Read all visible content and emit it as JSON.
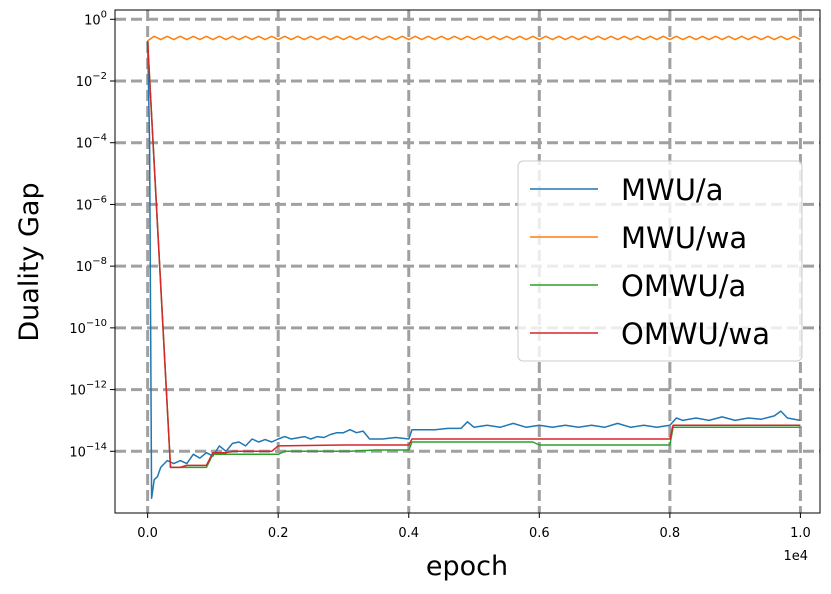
{
  "chart_data": {
    "type": "line",
    "title": "",
    "xlabel": "epoch",
    "ylabel": "Duality Gap",
    "x_offset_label": "1e4",
    "x_scale_factor": 10000,
    "xlim": [
      -0.05,
      1.03
    ],
    "x_ticks": [
      0.0,
      0.2,
      0.4,
      0.6,
      0.8,
      1.0
    ],
    "x_tick_labels": [
      "0.0",
      "0.2",
      "0.4",
      "0.6",
      "0.8",
      "1.0"
    ],
    "y_scale": "log",
    "ylim": [
      1e-16,
      2.0
    ],
    "y_ticks": [
      1.0,
      0.01,
      0.0001,
      1e-06,
      1e-08,
      1e-10,
      1e-12,
      1e-14
    ],
    "y_tick_labels": [
      {
        "base": "10",
        "exp": "0"
      },
      {
        "base": "10",
        "exp": "−2"
      },
      {
        "base": "10",
        "exp": "−4"
      },
      {
        "base": "10",
        "exp": "−6"
      },
      {
        "base": "10",
        "exp": "−8"
      },
      {
        "base": "10",
        "exp": "−10"
      },
      {
        "base": "10",
        "exp": "−12"
      },
      {
        "base": "10",
        "exp": "−14"
      }
    ],
    "grid": true,
    "legend_position": "center-right",
    "series": [
      {
        "name": "MWU/a",
        "color": "#1f77b4",
        "points": [
          [
            0.0,
            0.2
          ],
          [
            0.003,
            0.0001
          ],
          [
            0.006,
            3e-16
          ],
          [
            0.01,
            1.2e-15
          ],
          [
            0.015,
            1.5e-15
          ],
          [
            0.02,
            3e-15
          ],
          [
            0.03,
            5e-15
          ],
          [
            0.04,
            4e-15
          ],
          [
            0.05,
            5e-15
          ],
          [
            0.06,
            4e-15
          ],
          [
            0.07,
            8e-15
          ],
          [
            0.08,
            6e-15
          ],
          [
            0.09,
            9e-15
          ],
          [
            0.1,
            7e-15
          ],
          [
            0.11,
            1.5e-14
          ],
          [
            0.12,
            1e-14
          ],
          [
            0.13,
            1.8e-14
          ],
          [
            0.14,
            2e-14
          ],
          [
            0.15,
            1.5e-14
          ],
          [
            0.16,
            2.5e-14
          ],
          [
            0.17,
            2e-14
          ],
          [
            0.18,
            2.4e-14
          ],
          [
            0.19,
            2e-14
          ],
          [
            0.2,
            2.5e-14
          ],
          [
            0.21,
            3e-14
          ],
          [
            0.22,
            2.5e-14
          ],
          [
            0.24,
            3e-14
          ],
          [
            0.25,
            2.5e-14
          ],
          [
            0.26,
            3e-14
          ],
          [
            0.27,
            2.8e-14
          ],
          [
            0.28,
            3.5e-14
          ],
          [
            0.29,
            4e-14
          ],
          [
            0.3,
            4e-14
          ],
          [
            0.31,
            5e-14
          ],
          [
            0.32,
            4e-14
          ],
          [
            0.33,
            4.5e-14
          ],
          [
            0.34,
            2.5e-14
          ],
          [
            0.36,
            2.5e-14
          ],
          [
            0.38,
            2.8e-14
          ],
          [
            0.4,
            2.5e-14
          ],
          [
            0.405,
            5e-14
          ],
          [
            0.42,
            5e-14
          ],
          [
            0.44,
            5e-14
          ],
          [
            0.46,
            5.5e-14
          ],
          [
            0.48,
            5.5e-14
          ],
          [
            0.49,
            9e-14
          ],
          [
            0.5,
            6e-14
          ],
          [
            0.52,
            7e-14
          ],
          [
            0.54,
            6e-14
          ],
          [
            0.56,
            8e-14
          ],
          [
            0.58,
            6e-14
          ],
          [
            0.6,
            7e-14
          ],
          [
            0.62,
            6e-14
          ],
          [
            0.64,
            7e-14
          ],
          [
            0.66,
            6e-14
          ],
          [
            0.68,
            7e-14
          ],
          [
            0.7,
            6e-14
          ],
          [
            0.72,
            8e-14
          ],
          [
            0.74,
            6e-14
          ],
          [
            0.76,
            7e-14
          ],
          [
            0.78,
            6e-14
          ],
          [
            0.8,
            7e-14
          ],
          [
            0.81,
            1.2e-13
          ],
          [
            0.82,
            1e-13
          ],
          [
            0.84,
            1.2e-13
          ],
          [
            0.86,
            1e-13
          ],
          [
            0.88,
            1.3e-13
          ],
          [
            0.9,
            1e-13
          ],
          [
            0.92,
            1.2e-13
          ],
          [
            0.94,
            1.1e-13
          ],
          [
            0.96,
            1.4e-13
          ],
          [
            0.97,
            2e-13
          ],
          [
            0.98,
            1.2e-13
          ],
          [
            1.0,
            1e-13
          ]
        ]
      },
      {
        "name": "MWU/wa",
        "color": "#ff7f0e",
        "points": [
          [
            0.0,
            0.2
          ],
          [
            0.01,
            0.28
          ],
          [
            0.02,
            0.22
          ],
          [
            0.03,
            0.28
          ],
          [
            0.04,
            0.22
          ],
          [
            0.05,
            0.28
          ],
          [
            0.06,
            0.22
          ],
          [
            0.07,
            0.28
          ],
          [
            0.08,
            0.22
          ],
          [
            0.09,
            0.28
          ],
          [
            0.1,
            0.22
          ],
          [
            0.11,
            0.28
          ],
          [
            0.12,
            0.22
          ],
          [
            0.13,
            0.28
          ],
          [
            0.14,
            0.22
          ],
          [
            0.15,
            0.28
          ],
          [
            0.16,
            0.22
          ],
          [
            0.17,
            0.28
          ],
          [
            0.18,
            0.22
          ],
          [
            0.19,
            0.28
          ],
          [
            0.2,
            0.22
          ],
          [
            0.21,
            0.28
          ],
          [
            0.22,
            0.22
          ],
          [
            0.23,
            0.28
          ],
          [
            0.24,
            0.22
          ],
          [
            0.25,
            0.28
          ],
          [
            0.26,
            0.22
          ],
          [
            0.27,
            0.28
          ],
          [
            0.28,
            0.22
          ],
          [
            0.29,
            0.28
          ],
          [
            0.3,
            0.22
          ],
          [
            0.31,
            0.28
          ],
          [
            0.32,
            0.22
          ],
          [
            0.33,
            0.28
          ],
          [
            0.34,
            0.22
          ],
          [
            0.35,
            0.28
          ],
          [
            0.36,
            0.22
          ],
          [
            0.37,
            0.28
          ],
          [
            0.38,
            0.22
          ],
          [
            0.39,
            0.28
          ],
          [
            0.4,
            0.22
          ],
          [
            0.41,
            0.28
          ],
          [
            0.42,
            0.22
          ],
          [
            0.43,
            0.28
          ],
          [
            0.44,
            0.22
          ],
          [
            0.45,
            0.28
          ],
          [
            0.46,
            0.22
          ],
          [
            0.47,
            0.28
          ],
          [
            0.48,
            0.22
          ],
          [
            0.49,
            0.28
          ],
          [
            0.5,
            0.22
          ],
          [
            0.51,
            0.28
          ],
          [
            0.52,
            0.22
          ],
          [
            0.53,
            0.28
          ],
          [
            0.54,
            0.22
          ],
          [
            0.55,
            0.28
          ],
          [
            0.56,
            0.22
          ],
          [
            0.57,
            0.28
          ],
          [
            0.58,
            0.22
          ],
          [
            0.59,
            0.28
          ],
          [
            0.6,
            0.22
          ],
          [
            0.61,
            0.28
          ],
          [
            0.62,
            0.22
          ],
          [
            0.63,
            0.28
          ],
          [
            0.64,
            0.22
          ],
          [
            0.65,
            0.28
          ],
          [
            0.66,
            0.22
          ],
          [
            0.67,
            0.28
          ],
          [
            0.68,
            0.22
          ],
          [
            0.69,
            0.28
          ],
          [
            0.7,
            0.22
          ],
          [
            0.71,
            0.28
          ],
          [
            0.72,
            0.22
          ],
          [
            0.73,
            0.28
          ],
          [
            0.74,
            0.22
          ],
          [
            0.75,
            0.28
          ],
          [
            0.76,
            0.22
          ],
          [
            0.77,
            0.28
          ],
          [
            0.78,
            0.22
          ],
          [
            0.79,
            0.28
          ],
          [
            0.8,
            0.22
          ],
          [
            0.81,
            0.28
          ],
          [
            0.82,
            0.22
          ],
          [
            0.83,
            0.28
          ],
          [
            0.84,
            0.22
          ],
          [
            0.85,
            0.28
          ],
          [
            0.86,
            0.22
          ],
          [
            0.87,
            0.28
          ],
          [
            0.88,
            0.22
          ],
          [
            0.89,
            0.28
          ],
          [
            0.9,
            0.22
          ],
          [
            0.91,
            0.28
          ],
          [
            0.92,
            0.22
          ],
          [
            0.93,
            0.28
          ],
          [
            0.94,
            0.22
          ],
          [
            0.95,
            0.28
          ],
          [
            0.96,
            0.22
          ],
          [
            0.97,
            0.28
          ],
          [
            0.98,
            0.22
          ],
          [
            0.99,
            0.28
          ],
          [
            1.0,
            0.22
          ]
        ]
      },
      {
        "name": "OMWU/a",
        "color": "#2ca02c",
        "points": [
          [
            0.0,
            0.2
          ],
          [
            0.035,
            3e-15
          ],
          [
            0.05,
            3e-15
          ],
          [
            0.06,
            3e-15
          ],
          [
            0.09,
            3e-15
          ],
          [
            0.1,
            8e-15
          ],
          [
            0.16,
            8e-15
          ],
          [
            0.2,
            8e-15
          ],
          [
            0.21,
            1e-14
          ],
          [
            0.25,
            1e-14
          ],
          [
            0.3,
            1e-14
          ],
          [
            0.31,
            1e-14
          ],
          [
            0.35,
            1.1e-14
          ],
          [
            0.4,
            1.1e-14
          ],
          [
            0.405,
            2e-14
          ],
          [
            0.5,
            2e-14
          ],
          [
            0.59,
            2e-14
          ],
          [
            0.6,
            1.6e-14
          ],
          [
            0.7,
            1.6e-14
          ],
          [
            0.8,
            1.6e-14
          ],
          [
            0.805,
            6e-14
          ],
          [
            0.9,
            6e-14
          ],
          [
            1.0,
            6e-14
          ]
        ]
      },
      {
        "name": "OMWU/wa",
        "color": "#d62728",
        "points": [
          [
            0.0,
            0.2
          ],
          [
            0.035,
            3e-15
          ],
          [
            0.05,
            3e-15
          ],
          [
            0.06,
            3.5e-15
          ],
          [
            0.09,
            3.5e-15
          ],
          [
            0.1,
            9e-15
          ],
          [
            0.12,
            9e-15
          ],
          [
            0.13,
            1e-14
          ],
          [
            0.19,
            1e-14
          ],
          [
            0.2,
            1.5e-14
          ],
          [
            0.3,
            1.6e-14
          ],
          [
            0.4,
            1.6e-14
          ],
          [
            0.405,
            2.5e-14
          ],
          [
            0.5,
            2.5e-14
          ],
          [
            0.6,
            2.5e-14
          ],
          [
            0.7,
            2.5e-14
          ],
          [
            0.8,
            2.5e-14
          ],
          [
            0.805,
            7e-14
          ],
          [
            0.9,
            7e-14
          ],
          [
            1.0,
            7e-14
          ]
        ]
      }
    ]
  }
}
